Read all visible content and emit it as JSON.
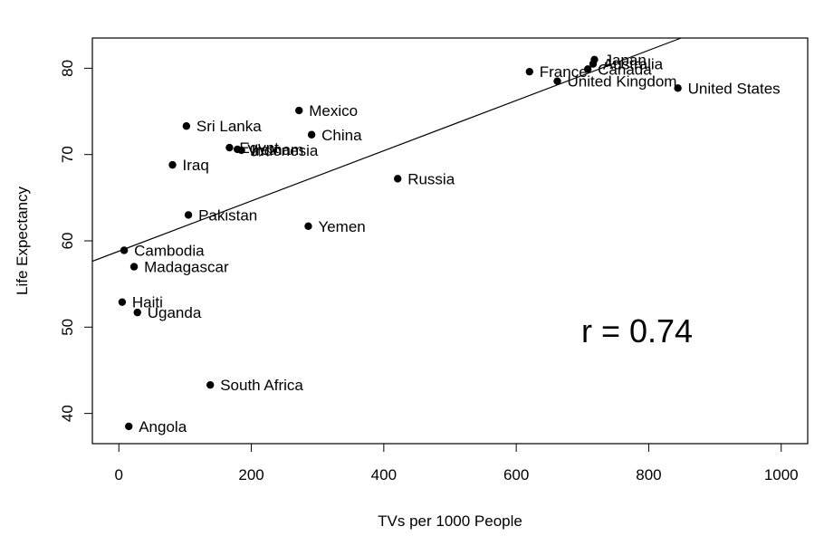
{
  "chart_data": {
    "type": "scatter",
    "xlabel": "TVs per 1000 People",
    "ylabel": "Life Expectancy",
    "xlim": [
      -40,
      1040
    ],
    "ylim": [
      36.5,
      83.5
    ],
    "xticks": [
      0,
      200,
      400,
      600,
      800,
      1000
    ],
    "yticks": [
      40,
      50,
      60,
      70,
      80
    ],
    "grid": false,
    "annotation": "r =  0.74",
    "regression": {
      "intercept": 58.8,
      "slope": 0.0291
    },
    "points": [
      {
        "label": "Japan",
        "x": 718,
        "y": 81.0
      },
      {
        "label": "Australia",
        "x": 716,
        "y": 80.5
      },
      {
        "label": "France",
        "x": 620,
        "y": 79.6
      },
      {
        "label": "Canada",
        "x": 708,
        "y": 79.9
      },
      {
        "label": "United Kingdom",
        "x": 662,
        "y": 78.5
      },
      {
        "label": "United States",
        "x": 844,
        "y": 77.7
      },
      {
        "label": "Mexico",
        "x": 272,
        "y": 75.1
      },
      {
        "label": "Sri Lanka",
        "x": 102,
        "y": 73.3
      },
      {
        "label": "China",
        "x": 291,
        "y": 72.3
      },
      {
        "label": "Egypt",
        "x": 167,
        "y": 70.8
      },
      {
        "label": "Vietnam",
        "x": 179,
        "y": 70.6
      },
      {
        "label": "Indonesia",
        "x": 185,
        "y": 70.5
      },
      {
        "label": "Iraq",
        "x": 81,
        "y": 68.8
      },
      {
        "label": "Russia",
        "x": 421,
        "y": 67.2
      },
      {
        "label": "Pakistan",
        "x": 105,
        "y": 63.0
      },
      {
        "label": "Yemen",
        "x": 286,
        "y": 61.7
      },
      {
        "label": "Cambodia",
        "x": 8,
        "y": 58.9
      },
      {
        "label": "Madagascar",
        "x": 23,
        "y": 57.0
      },
      {
        "label": "Haiti",
        "x": 5,
        "y": 52.9
      },
      {
        "label": "Uganda",
        "x": 28,
        "y": 51.7
      },
      {
        "label": "South Africa",
        "x": 138,
        "y": 43.3
      },
      {
        "label": "Angola",
        "x": 15,
        "y": 38.5
      }
    ]
  }
}
